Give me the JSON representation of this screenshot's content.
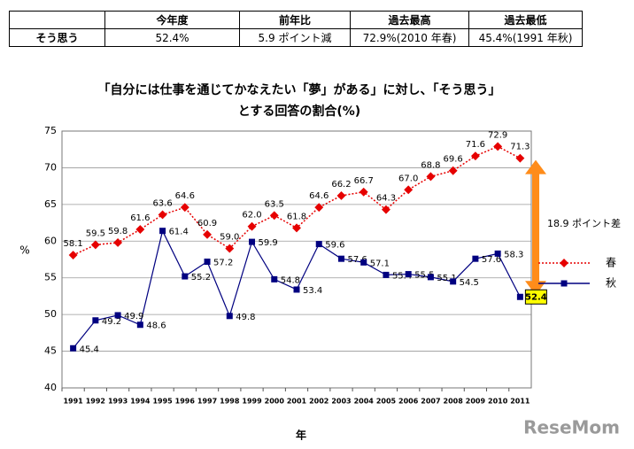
{
  "table": {
    "headers": [
      "今年度",
      "前年比",
      "過去最高",
      "過去最低"
    ],
    "row_label": "そう思う",
    "row": [
      "52.4%",
      "5.9 ポイント減",
      "72.9%(2010 年春)",
      "45.4%(1991 年秋)"
    ]
  },
  "watermark": "ReseMom",
  "chart_data": {
    "type": "line",
    "title": "「自分には仕事を通じてかなえたい「夢」がある」に対し、「そう思う」",
    "subtitle": "とする回答の割合(%)",
    "xlabel": "年",
    "ylabel": "%",
    "annotation": "18.9 ポイント差",
    "categories": [
      "1991",
      "1992",
      "1993",
      "1994",
      "1995",
      "1996",
      "1997",
      "1998",
      "1999",
      "2000",
      "2001",
      "2002",
      "2003",
      "2004",
      "2005",
      "2006",
      "2007",
      "2008",
      "2009",
      "2010",
      "2011"
    ],
    "series": [
      {
        "name": "春",
        "color": "#e60000",
        "values": [
          58.1,
          59.5,
          59.8,
          61.6,
          63.6,
          64.6,
          60.9,
          59.0,
          62.0,
          63.5,
          61.8,
          64.6,
          66.2,
          66.7,
          64.3,
          67.0,
          68.8,
          69.6,
          71.6,
          72.9,
          71.3
        ],
        "value_labels": [
          "58.1",
          "59.5",
          "59.8",
          "61.6",
          "63.6",
          "64.6",
          "60.9",
          "59.0",
          "62.0",
          "63.5",
          "61.8",
          "64.6",
          "66.2",
          "66.7",
          "64.3",
          "67.0",
          "68.8",
          "69.6",
          "71.6",
          "72.9",
          "71.3"
        ]
      },
      {
        "name": "秋",
        "color": "#000080",
        "values": [
          45.4,
          49.2,
          49.9,
          48.6,
          61.4,
          55.2,
          57.2,
          49.8,
          59.9,
          54.8,
          53.4,
          59.6,
          57.6,
          57.1,
          55.4,
          55.5,
          55.1,
          54.5,
          57.6,
          58.3,
          52.4
        ],
        "value_labels": [
          "45.4",
          "49.2",
          "49.9",
          "48.6",
          "61.4",
          "55.2",
          "57.2",
          "49.8",
          "59.9",
          "54.8",
          "53.4",
          "59.6",
          "57.6",
          "57.1",
          "55.4",
          "55.5",
          "55.1",
          "54.5",
          "57.6",
          "58.3",
          "52.4"
        ]
      }
    ],
    "ylim": [
      40,
      75
    ],
    "yticks": [
      40,
      45,
      50,
      55,
      60,
      65,
      70,
      75
    ],
    "grid": true,
    "legend": "right"
  }
}
